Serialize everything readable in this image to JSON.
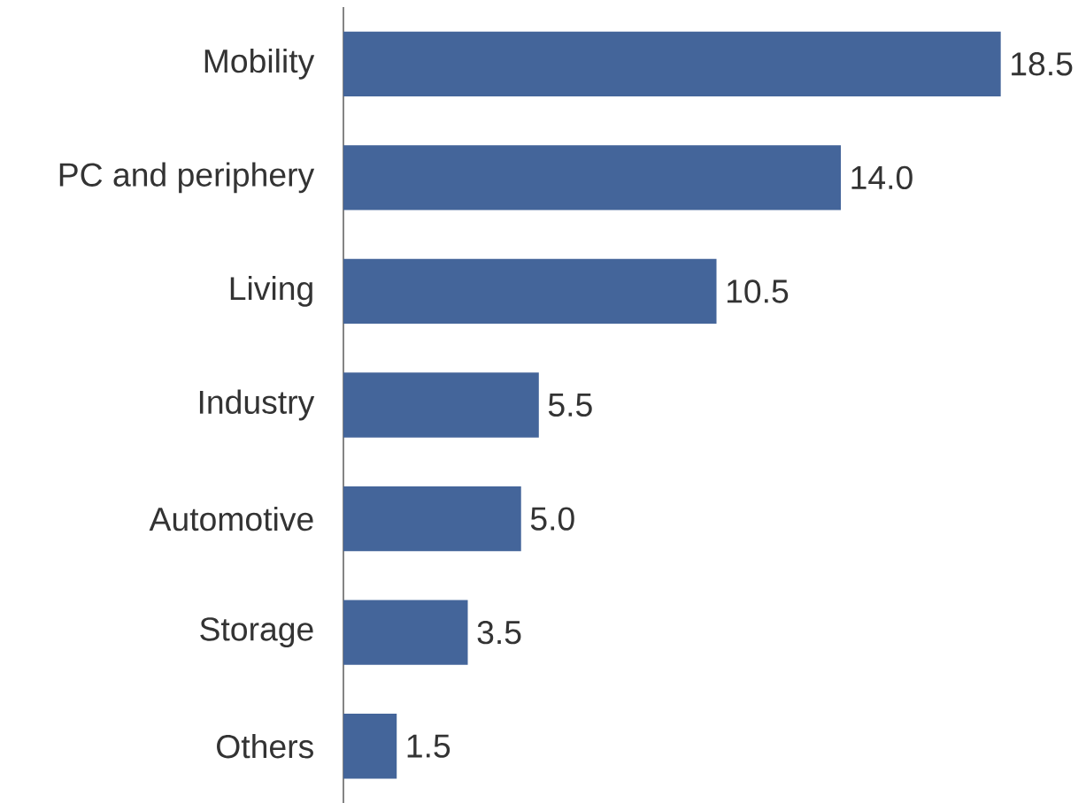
{
  "chart_data": {
    "type": "bar",
    "orientation": "horizontal",
    "categories": [
      "Mobility",
      "PC and periphery",
      "Living",
      "Industry",
      "Automotive",
      "Storage",
      "Others"
    ],
    "values": [
      18.5,
      14.0,
      10.5,
      5.5,
      5.0,
      3.5,
      1.5
    ],
    "value_labels": [
      "18.5",
      "14.0",
      "10.5",
      "5.5",
      "5.0",
      "3.5",
      "1.5"
    ],
    "color": "#44659a"
  }
}
